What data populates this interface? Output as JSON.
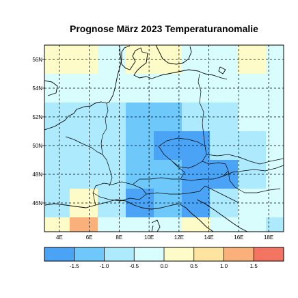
{
  "title": "Prognose März 2023 Temperaturanomalie",
  "colors": {
    "bins": [
      "#4aa3f5",
      "#6ec8fa",
      "#aeeafd",
      "#d9fcfd",
      "#fdfcc8",
      "#fde4a0",
      "#f9b07a",
      "#f47462"
    ],
    "ocean": "#d9fcfd",
    "coastline": "#000000",
    "gridline": "#000000"
  },
  "map": {
    "projection": "lat-lon",
    "lon_range": [
      3,
      19
    ],
    "lat_range": [
      44,
      57
    ],
    "lon_ticks": [
      {
        "value": 4,
        "label": "4E"
      },
      {
        "value": 6,
        "label": "6E"
      },
      {
        "value": 8,
        "label": "8E"
      },
      {
        "value": 10,
        "label": "10E"
      },
      {
        "value": 12,
        "label": "12E"
      },
      {
        "value": 14,
        "label": "14E"
      },
      {
        "value": 16,
        "label": "16E"
      },
      {
        "value": 18,
        "label": "18E"
      }
    ],
    "lat_ticks": [
      {
        "value": 46,
        "label": "46N"
      },
      {
        "value": 48,
        "label": "48N"
      },
      {
        "value": 50,
        "label": "50N"
      },
      {
        "value": 52,
        "label": "52N"
      },
      {
        "value": 54,
        "label": "54N"
      },
      {
        "value": 56,
        "label": "56N"
      }
    ],
    "grid": "dashed"
  },
  "colorbar": {
    "boundaries": [
      "-1.5",
      "-1.0",
      "-0.5",
      "0.0",
      "0.5",
      "1.0",
      "1.5"
    ]
  },
  "chart_data": {
    "type": "heatmap",
    "x_label": "",
    "y_label": "",
    "x_cells": [
      3.75,
      5.625,
      7.5,
      9.375,
      11.25,
      13.125,
      15.0,
      16.875,
      18.75
    ],
    "y_cells": [
      56.0,
      54.0,
      52.0,
      50.0,
      48.0,
      46.0,
      44.0
    ],
    "bin_index_matrix": [
      [
        4,
        4,
        3,
        4,
        4,
        3,
        3,
        4,
        3
      ],
      [
        3,
        3,
        3,
        3,
        3,
        3,
        3,
        3,
        3
      ],
      [
        2,
        2,
        2,
        1,
        1,
        2,
        2,
        3,
        3
      ],
      [
        2,
        2,
        2,
        1,
        0,
        0,
        2,
        2,
        3
      ],
      [
        2,
        2,
        2,
        1,
        1,
        0,
        0,
        2,
        3
      ],
      [
        2,
        4,
        2,
        0,
        1,
        0,
        2,
        3,
        3
      ],
      [
        4,
        6,
        3,
        3,
        3,
        4,
        3,
        3,
        2
      ]
    ]
  }
}
